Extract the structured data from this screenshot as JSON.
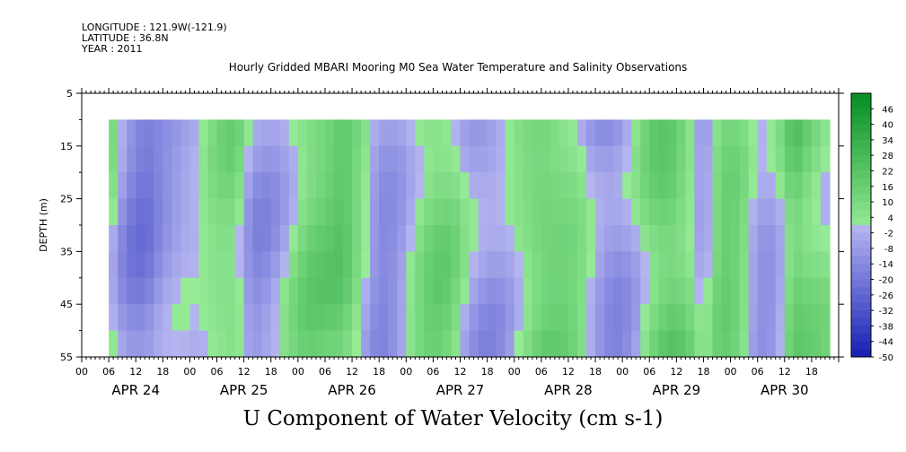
{
  "header": {
    "longitude": "LONGITUDE : 121.9W(-121.9)",
    "latitude": "LATITUDE : 36.8N",
    "year": "YEAR : 2011"
  },
  "chart_data": {
    "type": "heatmap",
    "title": "Hourly Gridded MBARI Mooring M0 Sea Water Temperature and Salinity Observations",
    "xlabel": "U Component of Water Velocity (cm s-1)",
    "ylabel": "DEPTH (m)",
    "y_ticks": [
      5,
      15,
      25,
      35,
      45,
      55
    ],
    "ylim": [
      55,
      5
    ],
    "hour_ticks": [
      "00",
      "06",
      "12",
      "18",
      "00",
      "06",
      "12",
      "18",
      "00",
      "06",
      "12",
      "18",
      "00",
      "06",
      "12",
      "18",
      "00",
      "06",
      "12",
      "18",
      "00",
      "06",
      "12",
      "18",
      "00",
      "06",
      "12",
      "18"
    ],
    "day_labels": [
      "APR 24",
      "APR 25",
      "APR 26",
      "APR 27",
      "APR 28",
      "APR 29",
      "APR 30"
    ],
    "data_depth_range": [
      10,
      55
    ],
    "data_time_range_hours": [
      6,
      165
    ],
    "colorbar": {
      "labels": [
        "46",
        "40",
        "34",
        "28",
        "22",
        "16",
        "10",
        "4",
        "-2",
        "-8",
        "-14",
        "-20",
        "-26",
        "-32",
        "-38",
        "-44",
        "-50"
      ],
      "min": -50,
      "max": 52
    },
    "time_profile": [
      {
        "hour": 6,
        "value": 8
      },
      {
        "hour": 10,
        "value": -12
      },
      {
        "hour": 14,
        "value": -18
      },
      {
        "hour": 18,
        "value": -10
      },
      {
        "hour": 22,
        "value": -6
      },
      {
        "hour": 26,
        "value": -4
      },
      {
        "hour": 30,
        "value": 6
      },
      {
        "hour": 34,
        "value": 10
      },
      {
        "hour": 38,
        "value": -10
      },
      {
        "hour": 42,
        "value": -8
      },
      {
        "hour": 46,
        "value": 2
      },
      {
        "hour": 50,
        "value": 12
      },
      {
        "hour": 54,
        "value": 14
      },
      {
        "hour": 58,
        "value": 18
      },
      {
        "hour": 62,
        "value": 4
      },
      {
        "hour": 66,
        "value": -12
      },
      {
        "hour": 70,
        "value": -8
      },
      {
        "hour": 74,
        "value": 6
      },
      {
        "hour": 78,
        "value": 14
      },
      {
        "hour": 82,
        "value": 10
      },
      {
        "hour": 86,
        "value": -6
      },
      {
        "hour": 90,
        "value": -10
      },
      {
        "hour": 94,
        "value": -4
      },
      {
        "hour": 98,
        "value": 8
      },
      {
        "hour": 102,
        "value": 16
      },
      {
        "hour": 106,
        "value": 14
      },
      {
        "hour": 110,
        "value": 8
      },
      {
        "hour": 114,
        "value": -8
      },
      {
        "hour": 118,
        "value": -14
      },
      {
        "hour": 122,
        "value": -6
      },
      {
        "hour": 126,
        "value": 12
      },
      {
        "hour": 130,
        "value": 20
      },
      {
        "hour": 134,
        "value": 12
      },
      {
        "hour": 138,
        "value": -8
      },
      {
        "hour": 142,
        "value": 14
      },
      {
        "hour": 146,
        "value": 10
      },
      {
        "hour": 150,
        "value": -10
      },
      {
        "hour": 154,
        "value": -6
      },
      {
        "hour": 158,
        "value": 20
      },
      {
        "hour": 162,
        "value": 12
      },
      {
        "hour": 165,
        "value": 6
      }
    ]
  }
}
